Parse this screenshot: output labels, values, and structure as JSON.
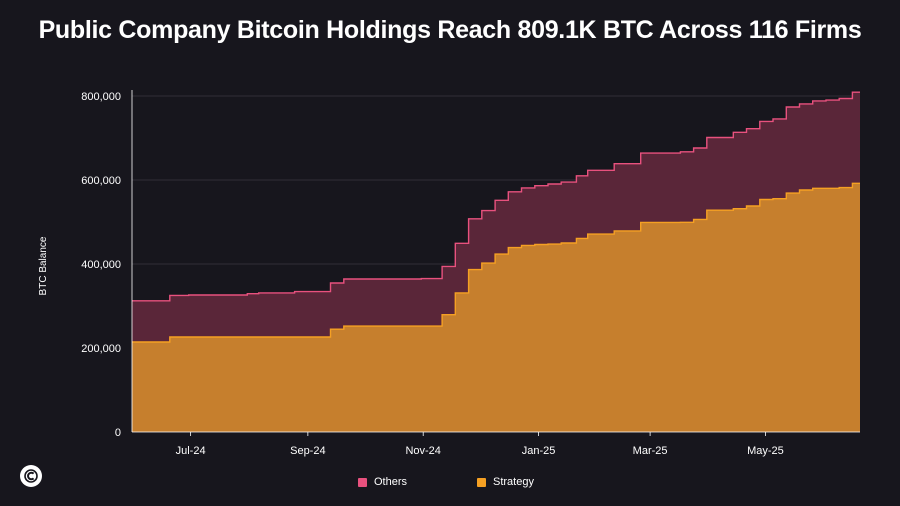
{
  "title": "Public Company Bitcoin Holdings Reach 809.1K BTC Across 116 Firms",
  "logo_icon": "c-logo-icon",
  "colors": {
    "background": "#17161d",
    "others_line": "#e8517e",
    "others_fill": "#5a2639",
    "strategy_line": "#f5a023",
    "strategy_fill": "#c67f2d",
    "grid": "#3a3942"
  },
  "legend": [
    {
      "label": "Others",
      "color": "#e8517e"
    },
    {
      "label": "Strategy",
      "color": "#f5a023"
    }
  ],
  "chart_data": {
    "type": "area",
    "stacked": true,
    "title": "Public Company Bitcoin Holdings Reach 809.1K BTC Across 116 Firms",
    "xlabel": "",
    "ylabel": "BTC Balance",
    "ylim": [
      0,
      800000
    ],
    "yticks": [
      0,
      200000,
      400000,
      600000,
      800000
    ],
    "ytick_labels": [
      "0",
      "200,000",
      "400,000",
      "600,000",
      "800,000"
    ],
    "xlim": [
      "2024-05-31",
      "2025-06-20"
    ],
    "xticks": [
      "2024-07-01",
      "2024-09-01",
      "2024-11-01",
      "2025-01-01",
      "2025-03-01",
      "2025-05-01"
    ],
    "xtick_labels": [
      "Jul-24",
      "Sep-24",
      "Nov-24",
      "Jan-25",
      "Mar-25",
      "May-25"
    ],
    "grid": "horizontal",
    "legend_position": "bottom",
    "x": [
      "2024-05-31",
      "2024-06-14",
      "2024-06-20",
      "2024-06-30",
      "2024-07-31",
      "2024-08-06",
      "2024-08-25",
      "2024-09-13",
      "2024-09-20",
      "2024-10-31",
      "2024-11-11",
      "2024-11-18",
      "2024-11-25",
      "2024-12-02",
      "2024-12-09",
      "2024-12-16",
      "2024-12-23",
      "2024-12-30",
      "2025-01-06",
      "2025-01-13",
      "2025-01-21",
      "2025-01-27",
      "2025-02-10",
      "2025-02-24",
      "2025-03-17",
      "2025-03-24",
      "2025-03-31",
      "2025-04-14",
      "2025-04-21",
      "2025-04-28",
      "2025-05-05",
      "2025-05-12",
      "2025-05-19",
      "2025-05-26",
      "2025-06-02",
      "2025-06-09",
      "2025-06-16",
      "2025-06-20"
    ],
    "series": [
      {
        "name": "Strategy",
        "values": [
          214400,
          214400,
          226300,
          226300,
          226300,
          226300,
          226300,
          244800,
          252200,
          252200,
          279400,
          331200,
          386700,
          402100,
          423600,
          439000,
          444300,
          446400,
          447500,
          450000,
          461000,
          471100,
          478700,
          499100,
          499200,
          506100,
          528200,
          531600,
          538200,
          553600,
          555400,
          568800,
          576200,
          580300,
          580300,
          582000,
          592100,
          592100
        ]
      },
      {
        "name": "Others",
        "values": [
          98000,
          98000,
          99000,
          100000,
          103000,
          105000,
          108000,
          110000,
          112000,
          113000,
          115000,
          118000,
          121000,
          125000,
          128000,
          133000,
          137000,
          140000,
          143000,
          145000,
          149000,
          152000,
          160000,
          165000,
          168000,
          170000,
          173000,
          182000,
          184000,
          186000,
          190000,
          205000,
          205000,
          208000,
          210000,
          212000,
          217000,
          217000
        ]
      }
    ]
  }
}
